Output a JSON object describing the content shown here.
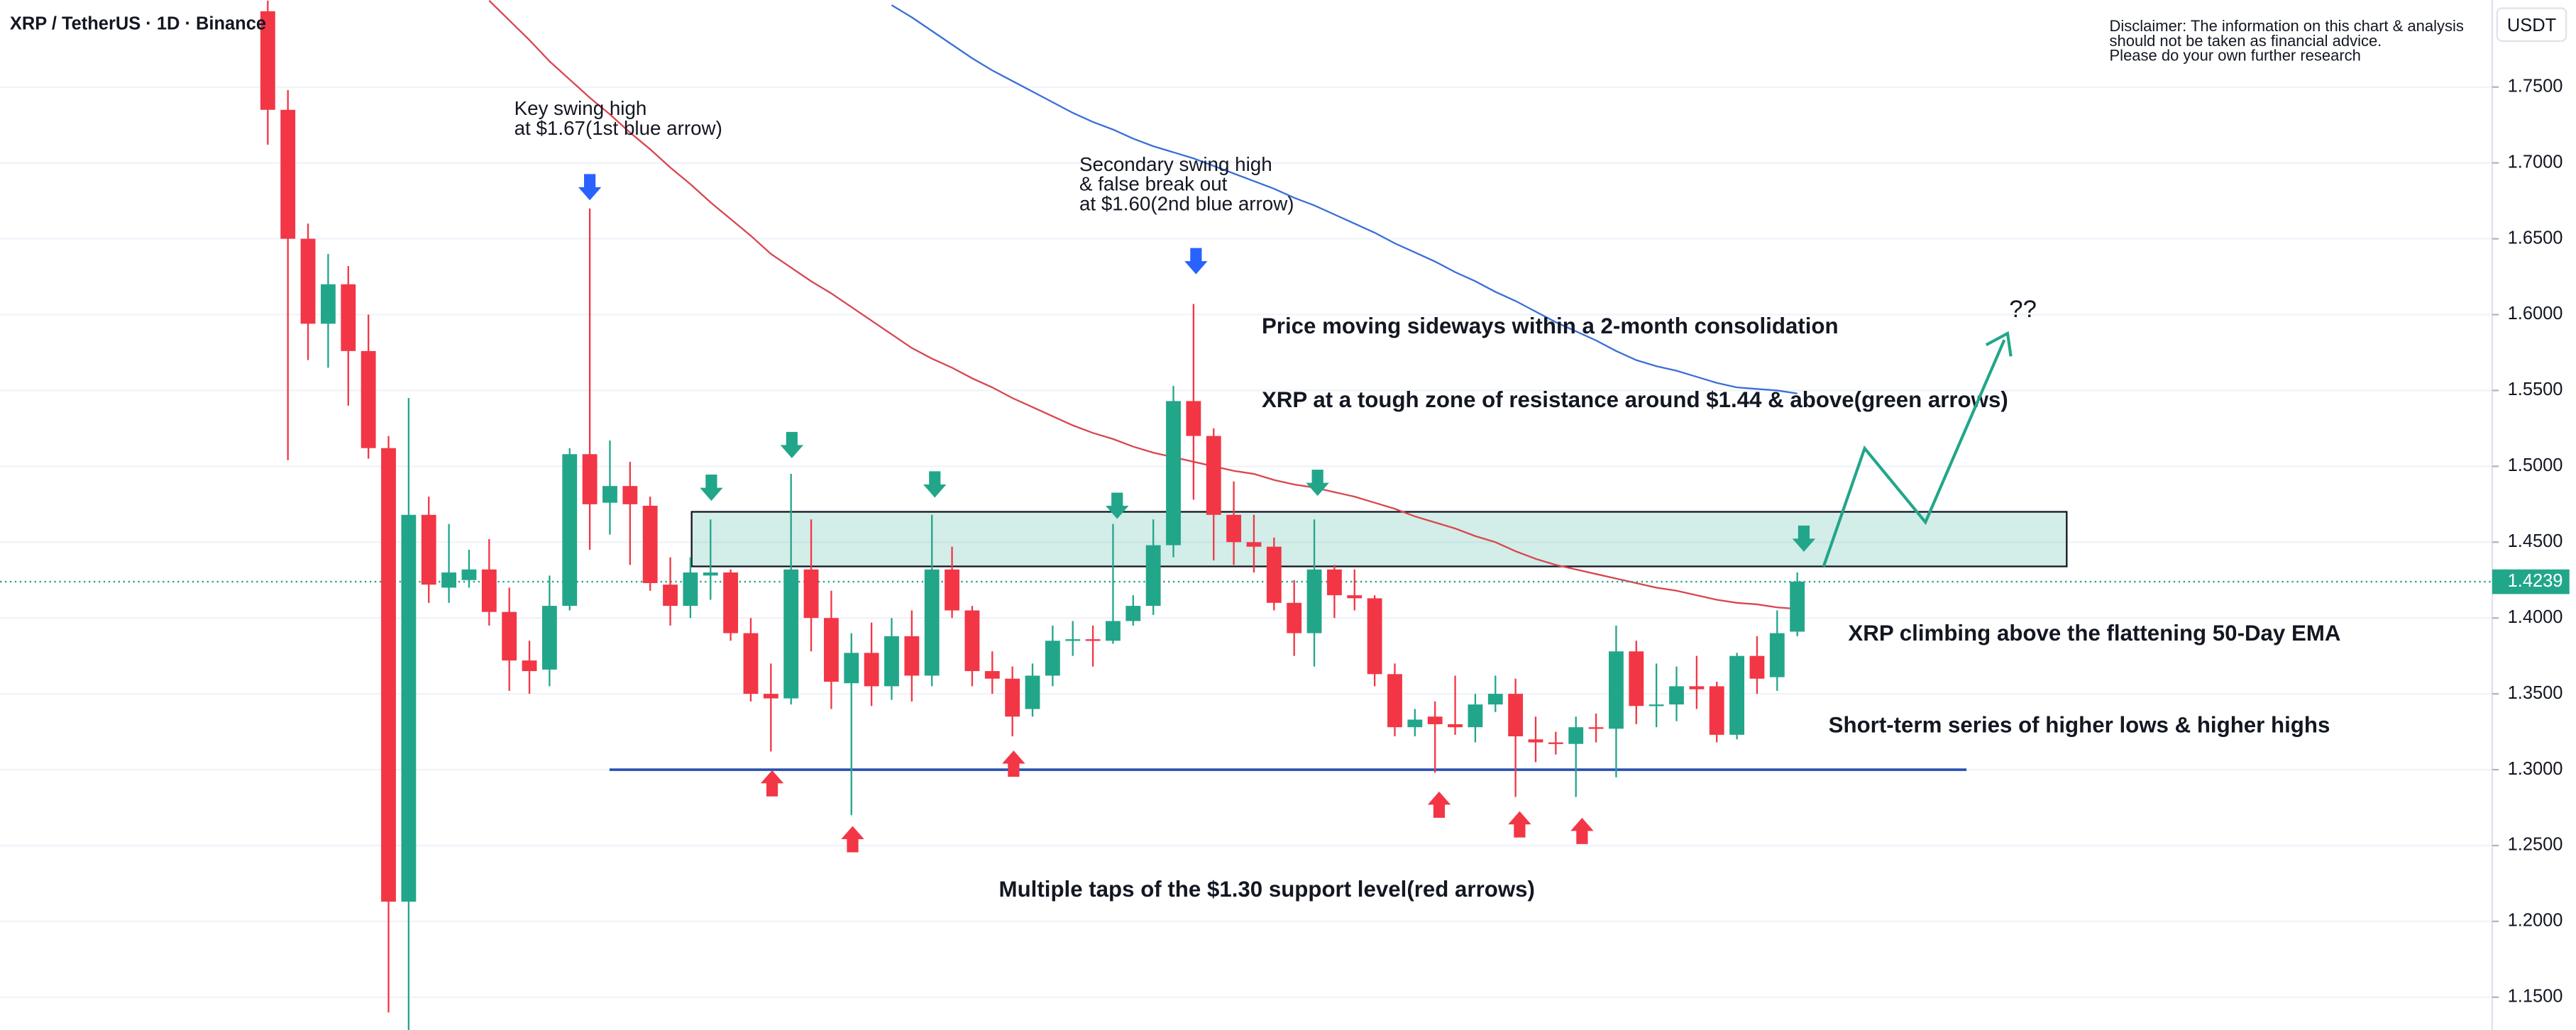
{
  "chart_data": {
    "type": "candlestick",
    "title": "XRP / TetherUS · 1D · Binance",
    "y_unit": "USDT",
    "disclaimer": [
      "Disclaimer: The information on this chart & analysis",
      "should not be taken as financial advice.",
      "Please do your own further research"
    ],
    "up_color": "#22a68a",
    "down_color": "#f23645",
    "open": [
      1.8,
      1.735,
      1.65,
      1.594,
      1.62,
      1.576,
      1.512,
      1.213,
      1.468,
      1.42,
      1.425,
      1.432,
      1.404,
      1.372,
      1.366,
      1.408,
      1.508,
      1.476,
      1.487,
      1.474,
      1.422,
      1.408,
      1.428,
      1.43,
      1.39,
      1.35,
      1.347,
      1.432,
      1.4,
      1.357,
      1.377,
      1.355,
      1.388,
      1.362,
      1.432,
      1.405,
      1.365,
      1.36,
      1.34,
      1.362,
      1.385,
      1.386,
      1.385,
      1.398,
      1.408,
      1.448,
      1.543,
      1.52,
      1.468,
      1.45,
      1.447,
      1.41,
      1.39,
      1.432,
      1.415,
      1.413,
      1.363,
      1.328,
      1.335,
      1.33,
      1.328,
      1.343,
      1.35,
      1.32,
      1.318,
      1.317,
      1.328,
      1.327,
      1.378,
      1.342,
      1.343,
      1.355,
      1.355,
      1.323,
      1.375,
      1.361,
      1.391
    ],
    "high": [
      1.807,
      1.748,
      1.66,
      1.64,
      1.632,
      1.6,
      1.52,
      1.545,
      1.48,
      1.462,
      1.445,
      1.452,
      1.42,
      1.385,
      1.428,
      1.512,
      1.67,
      1.517,
      1.503,
      1.48,
      1.44,
      1.44,
      1.465,
      1.432,
      1.4,
      1.37,
      1.495,
      1.465,
      1.418,
      1.39,
      1.397,
      1.4,
      1.405,
      1.468,
      1.447,
      1.408,
      1.378,
      1.368,
      1.37,
      1.395,
      1.398,
      1.395,
      1.462,
      1.415,
      1.465,
      1.553,
      1.607,
      1.525,
      1.49,
      1.468,
      1.453,
      1.425,
      1.465,
      1.435,
      1.432,
      1.415,
      1.37,
      1.34,
      1.345,
      1.362,
      1.35,
      1.362,
      1.36,
      1.335,
      1.325,
      1.335,
      1.337,
      1.395,
      1.385,
      1.37,
      1.368,
      1.375,
      1.358,
      1.377,
      1.388,
      1.405,
      1.43
    ],
    "low": [
      1.712,
      1.504,
      1.57,
      1.565,
      1.54,
      1.505,
      1.14,
      1.128,
      1.41,
      1.41,
      1.42,
      1.395,
      1.352,
      1.35,
      1.355,
      1.405,
      1.445,
      1.455,
      1.435,
      1.418,
      1.395,
      1.4,
      1.412,
      1.385,
      1.345,
      1.312,
      1.343,
      1.378,
      1.34,
      1.27,
      1.342,
      1.346,
      1.345,
      1.355,
      1.4,
      1.355,
      1.35,
      1.322,
      1.335,
      1.355,
      1.375,
      1.368,
      1.383,
      1.395,
      1.402,
      1.44,
      1.478,
      1.438,
      1.435,
      1.43,
      1.405,
      1.375,
      1.368,
      1.4,
      1.405,
      1.355,
      1.322,
      1.322,
      1.298,
      1.323,
      1.318,
      1.338,
      1.282,
      1.305,
      1.31,
      1.282,
      1.318,
      1.295,
      1.33,
      1.328,
      1.332,
      1.34,
      1.318,
      1.32,
      1.35,
      1.352,
      1.388
    ],
    "close": [
      1.735,
      1.65,
      1.594,
      1.62,
      1.576,
      1.512,
      1.213,
      1.468,
      1.422,
      1.43,
      1.432,
      1.404,
      1.372,
      1.365,
      1.408,
      1.508,
      1.475,
      1.487,
      1.475,
      1.423,
      1.408,
      1.43,
      1.43,
      1.39,
      1.35,
      1.347,
      1.432,
      1.4,
      1.358,
      1.377,
      1.355,
      1.388,
      1.362,
      1.432,
      1.405,
      1.365,
      1.36,
      1.335,
      1.362,
      1.385,
      1.386,
      1.385,
      1.398,
      1.408,
      1.448,
      1.543,
      1.52,
      1.468,
      1.45,
      1.447,
      1.41,
      1.39,
      1.432,
      1.415,
      1.413,
      1.363,
      1.328,
      1.333,
      1.33,
      1.328,
      1.343,
      1.35,
      1.322,
      1.318,
      1.317,
      1.328,
      1.327,
      1.378,
      1.342,
      1.343,
      1.355,
      1.353,
      1.323,
      1.375,
      1.36,
      1.39,
      1.424
    ],
    "series": [
      {
        "color": "#d9464f",
        "values": [
          null,
          null,
          null,
          null,
          null,
          null,
          null,
          null,
          null,
          null,
          null,
          1.807,
          1.794,
          1.781,
          1.767,
          1.755,
          1.743,
          1.732,
          1.72,
          1.709,
          1.697,
          1.686,
          1.674,
          1.663,
          1.652,
          1.64,
          1.631,
          1.622,
          1.614,
          1.605,
          1.596,
          1.587,
          1.578,
          1.571,
          1.565,
          1.558,
          1.552,
          1.545,
          1.539,
          1.533,
          1.527,
          1.522,
          1.518,
          1.513,
          1.509,
          1.506,
          1.503,
          1.5,
          1.497,
          1.495,
          1.491,
          1.488,
          1.486,
          1.483,
          1.48,
          1.476,
          1.472,
          1.467,
          1.463,
          1.459,
          1.454,
          1.45,
          1.444,
          1.439,
          1.435,
          1.432,
          1.429,
          1.426,
          1.423,
          1.42,
          1.418,
          1.415,
          1.412,
          1.41,
          1.409,
          1.407,
          1.406
        ]
      },
      {
        "color": "#3a6fd8",
        "values": [
          null,
          null,
          null,
          null,
          null,
          null,
          null,
          null,
          null,
          null,
          null,
          null,
          null,
          null,
          null,
          null,
          null,
          null,
          null,
          null,
          null,
          null,
          null,
          null,
          null,
          null,
          null,
          null,
          null,
          null,
          null,
          1.804,
          1.796,
          1.787,
          1.778,
          1.769,
          1.761,
          1.754,
          1.747,
          1.74,
          1.733,
          1.727,
          1.722,
          1.716,
          1.711,
          1.707,
          1.703,
          1.698,
          1.693,
          1.688,
          1.683,
          1.677,
          1.672,
          1.666,
          1.66,
          1.654,
          1.647,
          1.641,
          1.635,
          1.628,
          1.622,
          1.615,
          1.609,
          1.602,
          1.595,
          1.589,
          1.583,
          1.576,
          1.57,
          1.566,
          1.563,
          1.559,
          1.555,
          1.552,
          1.551,
          1.55,
          1.548
        ]
      }
    ],
    "resistance_zone": [
      1.434,
      1.47
    ],
    "support_level": 1.3,
    "last_price": 1.4239,
    "ylim": [
      1.1284,
      1.8074
    ],
    "yticks": [
      {
        "value": 1.15,
        "label": "1.1500"
      },
      {
        "value": 1.2,
        "label": "1.2000"
      },
      {
        "value": 1.25,
        "label": "1.2500"
      },
      {
        "value": 1.3,
        "label": "1.3000"
      },
      {
        "value": 1.35,
        "label": "1.3500"
      },
      {
        "value": 1.4,
        "label": "1.4000"
      },
      {
        "value": 1.45,
        "label": "1.4500"
      },
      {
        "value": 1.5,
        "label": "1.5000"
      },
      {
        "value": 1.55,
        "label": "1.5500"
      },
      {
        "value": 1.6,
        "label": "1.6000"
      },
      {
        "value": 1.65,
        "label": "1.6500"
      },
      {
        "value": 1.7,
        "label": "1.7000"
      },
      {
        "value": 1.75,
        "label": "1.7500"
      }
    ],
    "grid": true,
    "annotations": [
      "Key swing high",
      "at $1.67(1st blue arrow)",
      "Secondary swing high",
      "& false break out",
      "at $1.60(2nd blue arrow)",
      "Price moving sideways within a 2-month consolidation",
      "XRP at a tough zone of resistance around $1.44 & above(green arrows)",
      "??",
      "XRP climbing above the flattening 50-Day EMA",
      "Short-term series of higher lows & higher highs",
      "Multiple taps of the $1.30 support level(red arrows)"
    ]
  }
}
